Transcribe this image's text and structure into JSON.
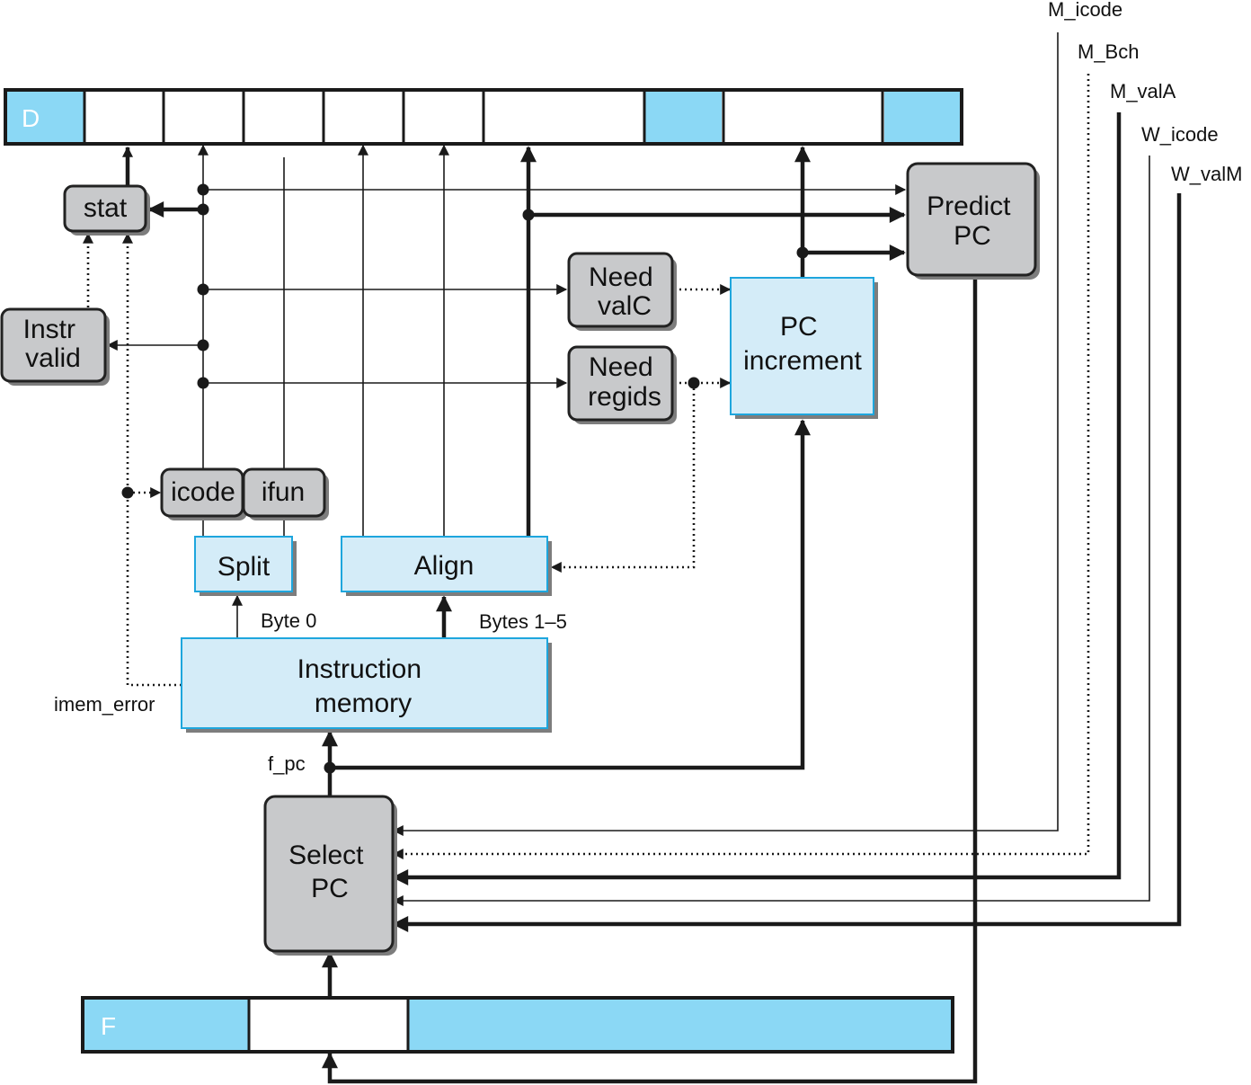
{
  "registers": {
    "d_label": "D",
    "f_label": "F"
  },
  "blocks": {
    "stat": "stat",
    "instr_valid": [
      "Instr",
      "valid"
    ],
    "need_valc": [
      "Need",
      "valC"
    ],
    "need_regids": [
      "Need",
      "regids"
    ],
    "pc_increment": [
      "PC",
      "increment"
    ],
    "predict_pc": [
      "Predict",
      "PC"
    ],
    "icode": "icode",
    "ifun": "ifun",
    "split": "Split",
    "align": "Align",
    "instruction_memory": [
      "Instruction",
      "memory"
    ],
    "select_pc": [
      "Select",
      "PC"
    ]
  },
  "signals": {
    "m_icode": "M_icode",
    "m_bch": "M_Bch",
    "m_vala": "M_valA",
    "w_icode": "W_icode",
    "w_valm": "W_valM",
    "byte0": "Byte 0",
    "bytes15": "Bytes 1–5",
    "imem_error": "imem_error",
    "f_pc": "f_pc"
  },
  "colors": {
    "register_fill": "#8bd8f5",
    "logic_fill": "#d4ecf8",
    "logic_stroke": "#1ea6dd",
    "control_fill": "#c8c9cb"
  }
}
